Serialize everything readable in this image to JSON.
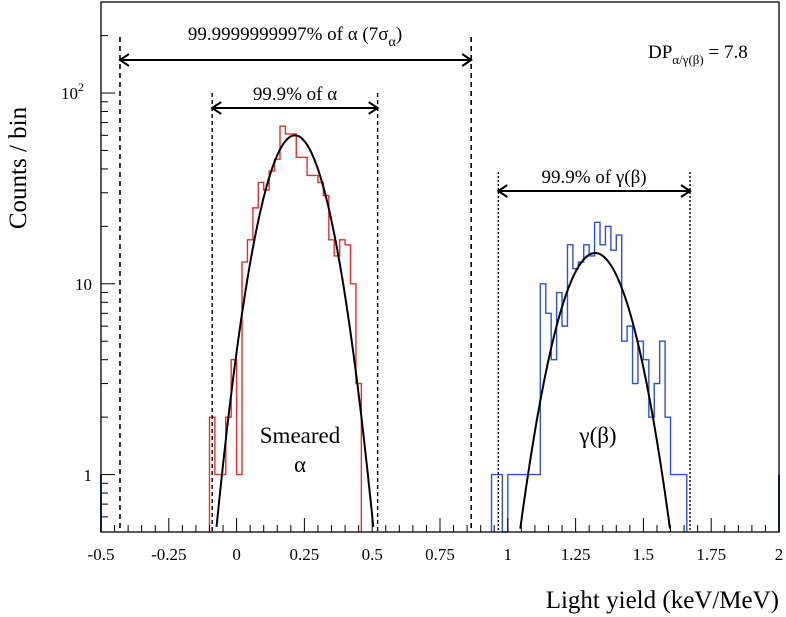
{
  "chart_data": {
    "type": "histogram",
    "xlabel": "Light yield (keV/MeV)",
    "ylabel": "Counts / bin",
    "xlim": [
      -0.5,
      2.0
    ],
    "ylim": [
      0.5,
      300
    ],
    "yscale": "log",
    "x_ticks": [
      -0.5,
      -0.25,
      0,
      0.25,
      0.5,
      0.75,
      1,
      1.25,
      1.5,
      1.75,
      2
    ],
    "x_tick_labels": [
      "-0.5",
      "-0.25",
      "0",
      "0.25",
      "0.5",
      "0.75",
      "1",
      "1.25",
      "1.5",
      "1.75",
      "2"
    ],
    "y_ticks": [
      1,
      10,
      100
    ],
    "y_tick_labels": [
      "1",
      "10",
      "10",
      "2"
    ],
    "bin_width": 0.02,
    "series": [
      {
        "name": "Smeared α",
        "color": "#e03030",
        "bin_start": -0.1,
        "counts": [
          2,
          1,
          1,
          2,
          4,
          1,
          13,
          17,
          25,
          34,
          31,
          39,
          45,
          67,
          61,
          61,
          46,
          46,
          37,
          37,
          34,
          29,
          17,
          14,
          17,
          16,
          10,
          3
        ]
      },
      {
        "name": "γ(β)",
        "color": "#3050d0",
        "bin_start": 0.94,
        "counts": [
          1,
          1,
          0,
          1,
          1,
          1,
          1,
          1,
          1,
          10,
          7,
          4,
          9,
          6,
          16,
          12,
          13,
          16,
          14,
          21,
          16,
          20,
          15,
          18,
          5,
          6,
          3,
          5,
          4,
          2,
          3,
          5,
          2,
          1,
          1,
          1
        ],
        "edge_bins": [
          -0.5,
          2.0
        ]
      }
    ],
    "fits": [
      {
        "name": "alpha-gaussian-fit",
        "color": "#000000",
        "amplitude": 60,
        "mean": 0.215,
        "sigma": 0.094
      },
      {
        "name": "gamma-gaussian-fit",
        "color": "#000000",
        "amplitude": 14.5,
        "mean": 1.322,
        "sigma": 0.107
      }
    ],
    "annotations": {
      "seven_sigma": {
        "x1": -0.43,
        "x2": 0.865,
        "text_main": "99.9999999997% of α (7σ",
        "text_sub": "α",
        "text_end": ")"
      },
      "alpha_999": {
        "x1": -0.09,
        "x2": 0.52,
        "text": "99.9% of α"
      },
      "gamma_999": {
        "x1": 0.965,
        "x2": 1.672,
        "text": "99.9% of γ(β)"
      },
      "dp": {
        "main": "DP",
        "sub": "α/γ(β)",
        "value": " = 7.8"
      },
      "alpha_label": [
        "Smeared",
        "α"
      ],
      "gamma_label": "γ(β)"
    }
  }
}
